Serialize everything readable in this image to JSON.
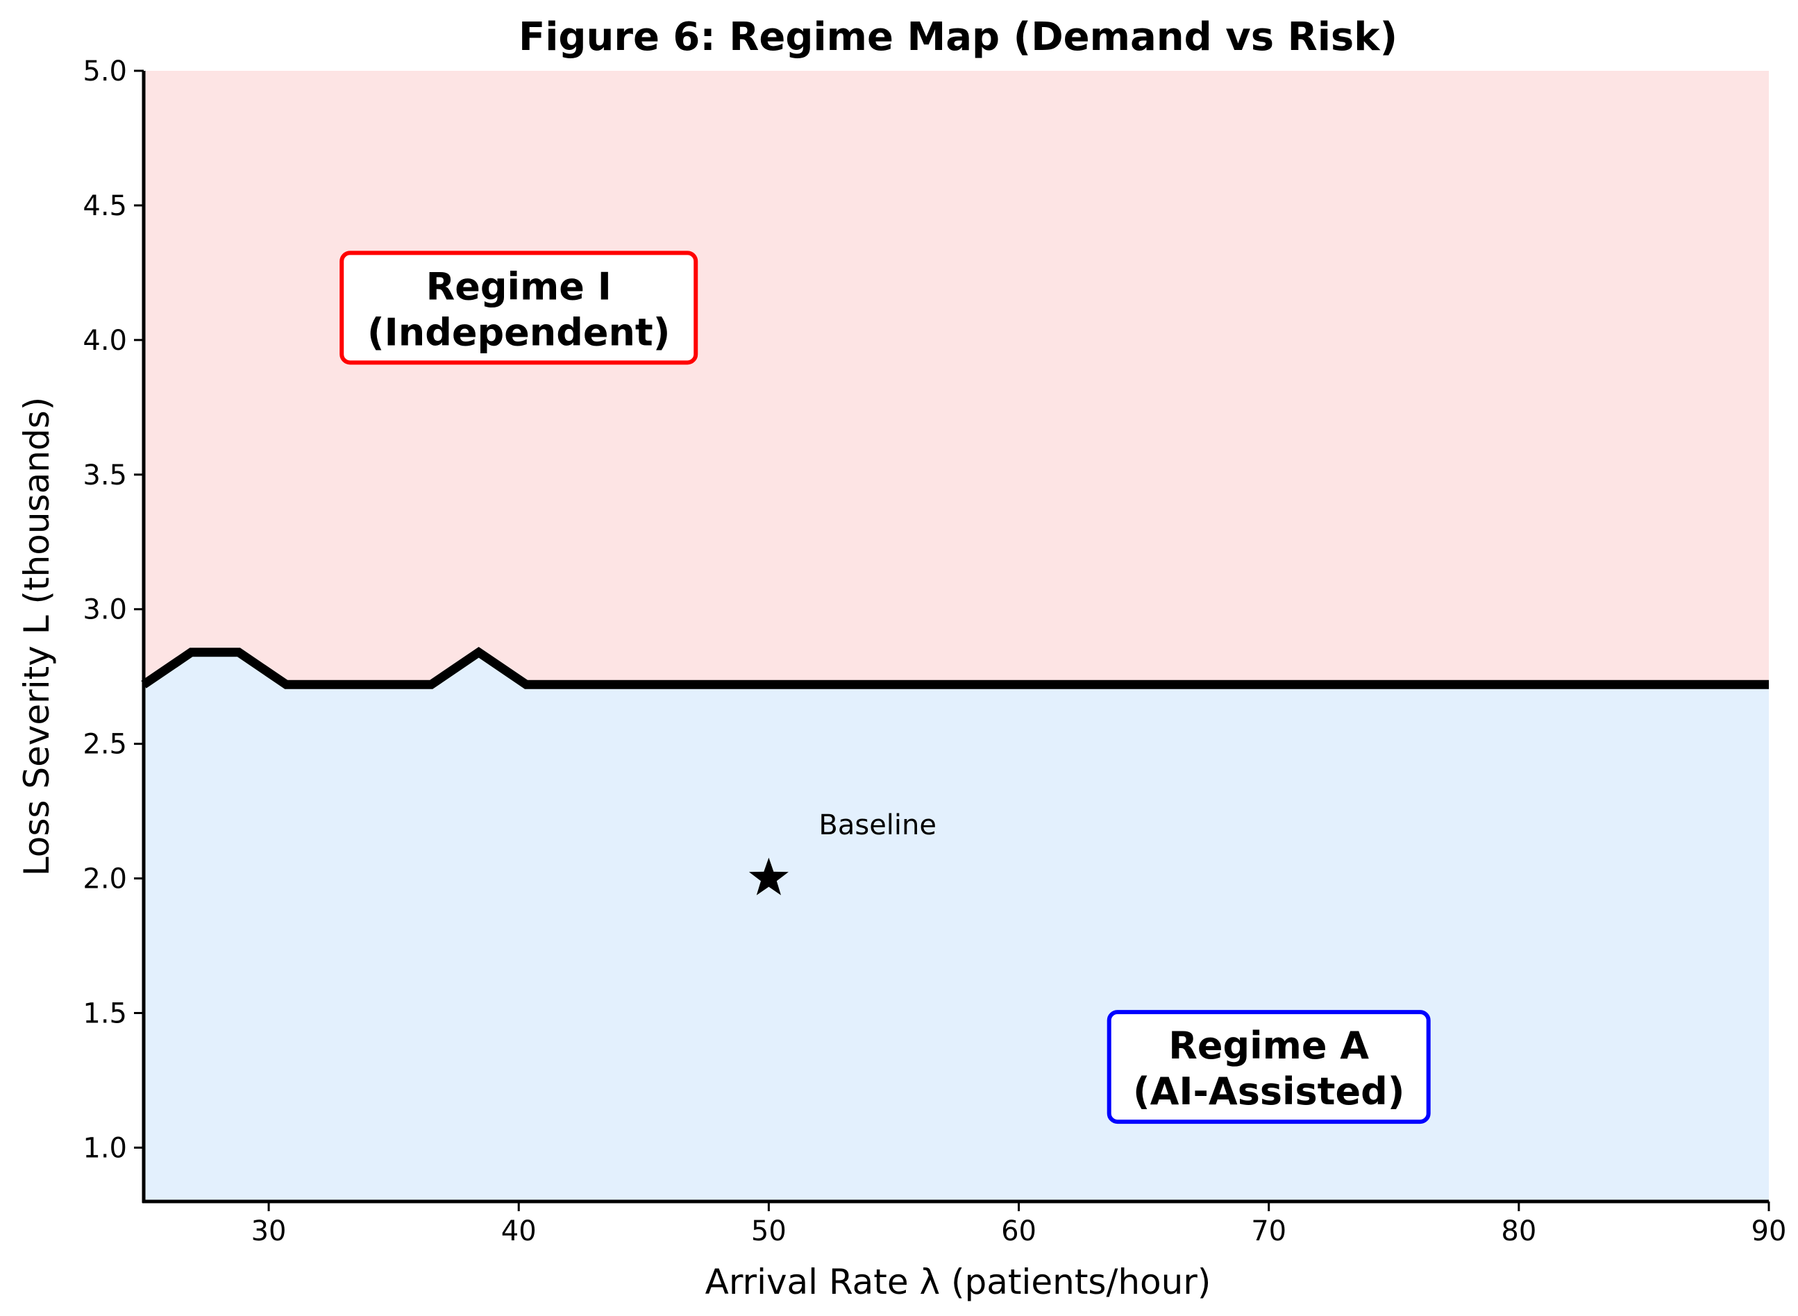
{
  "chart_data": {
    "type": "area",
    "title": "Figure 6: Regime Map (Demand vs Risk)",
    "xlabel": "Arrival Rate λ (patients/hour)",
    "ylabel": "Loss Severity L (thousands)",
    "xlim": [
      25,
      90
    ],
    "ylim": [
      0.8,
      5.0
    ],
    "x_ticks": [
      30,
      40,
      50,
      60,
      70,
      80,
      90
    ],
    "x_tick_labels": [
      "30",
      "40",
      "50",
      "60",
      "70",
      "80",
      "90"
    ],
    "y_ticks": [
      1.0,
      1.5,
      2.0,
      2.5,
      3.0,
      3.5,
      4.0,
      4.5,
      5.0
    ],
    "y_tick_labels": [
      "1.0",
      "1.5",
      "2.0",
      "2.5",
      "3.0",
      "3.5",
      "4.0",
      "4.5",
      "5.0"
    ],
    "grid": false,
    "boundary": {
      "x": [
        25,
        26.9,
        28.8,
        30.7,
        32.6,
        34.6,
        36.5,
        38.4,
        40.3,
        90
      ],
      "y": [
        2.72,
        2.84,
        2.84,
        2.72,
        2.72,
        2.72,
        2.72,
        2.84,
        2.72,
        2.72
      ]
    },
    "regions": [
      {
        "label": "Regime I\n(Independent)",
        "side": "above",
        "fill": "#fde4e4",
        "border": "#ff0000",
        "label_x": 40,
        "label_y": 4.12
      },
      {
        "label": "Regime A\n(AI-Assisted)",
        "side": "below",
        "fill": "#e3f0fd",
        "border": "#0000ff",
        "label_x": 70,
        "label_y": 1.3
      }
    ],
    "baseline": {
      "label": "Baseline",
      "x": 50,
      "y": 2.0,
      "marker": "star",
      "label_x": 52,
      "label_y": 2.2
    }
  }
}
